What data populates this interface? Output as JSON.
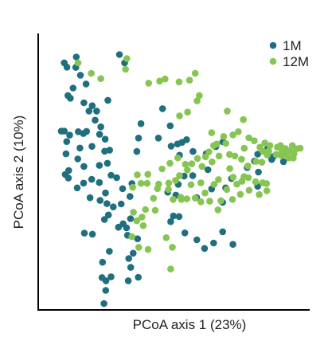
{
  "chart_data": {
    "type": "scatter",
    "xlabel": "PCoA axis 1 (23%)",
    "ylabel": "PCoA axis 2 (10%)",
    "xlim": [
      0,
      10
    ],
    "ylim": [
      0,
      10
    ],
    "grid": false,
    "legend_position": "top-right",
    "series": [
      {
        "name": "1M",
        "color": "#1f6f7f",
        "points": [
          [
            0.64,
            9.11
          ],
          [
            0.75,
            8.95
          ],
          [
            0.79,
            7.89
          ],
          [
            1.13,
            9.33
          ],
          [
            1.11,
            8.94
          ],
          [
            1.3,
            8.65
          ],
          [
            1.53,
            8.32
          ],
          [
            1.0,
            8.17
          ],
          [
            0.89,
            7.79
          ],
          [
            1.44,
            7.62
          ],
          [
            1.78,
            7.51
          ],
          [
            1.65,
            7.31
          ],
          [
            1.9,
            6.97
          ],
          [
            2.42,
            7.71
          ],
          [
            2.89,
            9.42
          ],
          [
            3.1,
            9.11
          ],
          [
            0.52,
            6.56
          ],
          [
            0.86,
            6.41
          ],
          [
            1.21,
            6.54
          ],
          [
            1.42,
            6.47
          ],
          [
            1.55,
            6.55
          ],
          [
            2.08,
            6.44
          ],
          [
            2.13,
            6.72
          ],
          [
            2.31,
            6.26
          ],
          [
            0.74,
            6.17
          ],
          [
            1.28,
            5.93
          ],
          [
            1.77,
            5.99
          ],
          [
            2.29,
            5.81
          ],
          [
            2.49,
            5.85
          ],
          [
            0.71,
            5.71
          ],
          [
            1.19,
            5.52
          ],
          [
            1.44,
            5.24
          ],
          [
            2.07,
            5.28
          ],
          [
            2.4,
            5.36
          ],
          [
            0.82,
            5.09
          ],
          [
            0.68,
            4.94
          ],
          [
            0.81,
            4.81
          ],
          [
            1.43,
            4.62
          ],
          [
            1.17,
            4.44
          ],
          [
            1.76,
            4.76
          ],
          [
            2.07,
            4.64
          ],
          [
            2.55,
            4.91
          ],
          [
            2.32,
            4.25
          ],
          [
            3.02,
            4.41
          ],
          [
            1.69,
            4.07
          ],
          [
            2.1,
            3.97
          ],
          [
            2.38,
            3.85
          ],
          [
            2.64,
            3.73
          ],
          [
            2.96,
            3.84
          ],
          [
            3.32,
            4.12
          ],
          [
            2.44,
            3.43
          ],
          [
            2.28,
            3.26
          ],
          [
            3.34,
            3.29
          ],
          [
            3.04,
            3.1
          ],
          [
            3.18,
            2.95
          ],
          [
            2.85,
            2.97
          ],
          [
            1.46,
            2.75
          ],
          [
            1.79,
            2.71
          ],
          [
            3.22,
            2.67
          ],
          [
            3.63,
            2.54
          ],
          [
            2.48,
            2.07
          ],
          [
            3.45,
            2.0
          ],
          [
            3.27,
            1.8
          ],
          [
            2.2,
            1.66
          ],
          [
            3.35,
            1.47
          ],
          [
            2.18,
            1.09
          ],
          [
            2.55,
            1.12
          ],
          [
            3.66,
            1.1
          ],
          [
            2.34,
            0.97
          ],
          [
            3.25,
            0.97
          ],
          [
            2.33,
            0.61
          ],
          [
            2.26,
            0.12
          ],
          [
            3.77,
            6.84
          ],
          [
            3.67,
            6.3
          ],
          [
            3.6,
            5.8
          ],
          [
            3.4,
            4.6
          ],
          [
            4.48,
            6.3
          ],
          [
            4.65,
            7.4
          ],
          [
            4.96,
            6.76
          ],
          [
            5.0,
            6.0
          ],
          [
            5.26,
            6.08
          ],
          [
            5.44,
            6.14
          ],
          [
            5.63,
            6.24
          ],
          [
            5.34,
            5.66
          ],
          [
            5.89,
            5.8
          ],
          [
            6.43,
            5.72
          ],
          [
            6.82,
            5.98
          ],
          [
            7.11,
            6.16
          ],
          [
            5.53,
            4.88
          ],
          [
            5.88,
            4.9
          ],
          [
            6.5,
            5.12
          ],
          [
            7.46,
            4.79
          ],
          [
            6.65,
            4.4
          ],
          [
            7.22,
            4.44
          ],
          [
            4.86,
            4.28
          ],
          [
            5.19,
            4.17
          ],
          [
            7.1,
            3.9
          ],
          [
            4.98,
            3.18
          ],
          [
            5.32,
            3.37
          ],
          [
            5.56,
            2.76
          ],
          [
            6.05,
            2.5
          ],
          [
            6.36,
            2.18
          ],
          [
            6.73,
            2.38
          ],
          [
            7.52,
            2.33
          ],
          [
            8.4,
            5.44
          ],
          [
            8.53,
            5.7
          ],
          [
            8.93,
            5.9
          ],
          [
            9.1,
            5.5
          ],
          [
            8.56,
            5.03
          ],
          [
            9.58,
            5.42
          ],
          [
            9.17,
            5.61
          ],
          [
            5.29,
            4.57
          ],
          [
            2.78,
            4.82
          ],
          [
            6.04,
            4.08
          ],
          [
            7.1,
            2.8
          ],
          [
            8.1,
            5.2
          ],
          [
            5.09,
            3.39
          ],
          [
            8.53,
            4.5
          ],
          [
            0.64,
            6.56
          ],
          [
            1.96,
            7.31
          ]
        ]
      },
      {
        "name": "12M",
        "color": "#86c552",
        "points": [
          [
            1.2,
            9.11
          ],
          [
            1.74,
            8.72
          ],
          [
            3.14,
            8.87
          ],
          [
            3.19,
            9.27
          ],
          [
            2.13,
            8.52
          ],
          [
            4.08,
            8.35
          ],
          [
            4.53,
            8.43
          ],
          [
            4.75,
            8.51
          ],
          [
            5.32,
            8.4
          ],
          [
            5.75,
            8.46
          ],
          [
            5.98,
            8.72
          ],
          [
            6.15,
            7.89
          ],
          [
            6.06,
            7.69
          ],
          [
            5.34,
            7.13
          ],
          [
            5.67,
            7.27
          ],
          [
            7.29,
            7.31
          ],
          [
            7.94,
            6.99
          ],
          [
            8.17,
            6.31
          ],
          [
            6.65,
            6.5
          ],
          [
            7.14,
            6.36
          ],
          [
            6.73,
            6.02
          ],
          [
            7.23,
            6.1
          ],
          [
            7.52,
            6.42
          ],
          [
            7.74,
            6.54
          ],
          [
            7.98,
            5.92
          ],
          [
            8.39,
            6.2
          ],
          [
            8.62,
            5.96
          ],
          [
            8.82,
            6.12
          ],
          [
            9.03,
            6.02
          ],
          [
            9.33,
            5.96
          ],
          [
            9.51,
            5.77
          ],
          [
            9.66,
            5.91
          ],
          [
            9.83,
            5.82
          ],
          [
            9.94,
            6.02
          ],
          [
            10.1,
            5.9
          ],
          [
            10.26,
            5.92
          ],
          [
            10.01,
            5.71
          ],
          [
            9.8,
            5.56
          ],
          [
            9.5,
            5.64
          ],
          [
            9.28,
            5.69
          ],
          [
            8.92,
            5.67
          ],
          [
            8.7,
            5.4
          ],
          [
            8.46,
            5.43
          ],
          [
            8.13,
            5.26
          ],
          [
            7.87,
            5.51
          ],
          [
            7.6,
            5.63
          ],
          [
            7.38,
            5.69
          ],
          [
            6.95,
            5.63
          ],
          [
            6.67,
            5.41
          ],
          [
            6.4,
            5.6
          ],
          [
            6.26,
            5.24
          ],
          [
            6.07,
            5.54
          ],
          [
            5.84,
            5.34
          ],
          [
            5.58,
            5.32
          ],
          [
            4.95,
            5.36
          ],
          [
            4.63,
            5.15
          ],
          [
            4.49,
            4.58
          ],
          [
            4.44,
            4.41
          ],
          [
            4.05,
            4.95
          ],
          [
            3.62,
            4.93
          ],
          [
            3.77,
            4.61
          ],
          [
            3.43,
            4.46
          ],
          [
            4.02,
            4.61
          ],
          [
            4.89,
            4.38
          ],
          [
            5.08,
            4.01
          ],
          [
            5.42,
            4.01
          ],
          [
            5.64,
            4.03
          ],
          [
            5.98,
            4.06
          ],
          [
            6.38,
            4.25
          ],
          [
            6.75,
            4.57
          ],
          [
            6.93,
            4.75
          ],
          [
            7.27,
            4.38
          ],
          [
            7.53,
            4.84
          ],
          [
            7.89,
            4.69
          ],
          [
            8.15,
            4.82
          ],
          [
            8.44,
            4.67
          ],
          [
            8.73,
            4.63
          ],
          [
            8.89,
            4.6
          ],
          [
            8.9,
            4.33
          ],
          [
            8.59,
            4.19
          ],
          [
            8.18,
            4.35
          ],
          [
            7.82,
            4.2
          ],
          [
            7.5,
            4.01
          ],
          [
            7.03,
            3.96
          ],
          [
            6.91,
            3.62
          ],
          [
            6.57,
            3.94
          ],
          [
            6.21,
            3.92
          ],
          [
            5.81,
            4.56
          ],
          [
            5.66,
            5.11
          ],
          [
            5.34,
            4.9
          ],
          [
            5.18,
            4.72
          ],
          [
            4.28,
            4.05
          ],
          [
            3.95,
            3.63
          ],
          [
            3.46,
            3.53
          ],
          [
            3.81,
            3.35
          ],
          [
            3.6,
            3.21
          ],
          [
            3.86,
            3.03
          ],
          [
            3.4,
            2.62
          ],
          [
            3.68,
            2.22
          ],
          [
            4.06,
            2.14
          ],
          [
            4.35,
            3.6
          ],
          [
            4.8,
            2.58
          ],
          [
            5.05,
            2.22
          ],
          [
            4.98,
            1.41
          ],
          [
            7.97,
            4.86
          ],
          [
            7.68,
            4.58
          ],
          [
            9.46,
            6.02
          ],
          [
            9.98,
            5.55
          ],
          [
            6.21,
            4.63
          ],
          [
            6.54,
            5.79
          ],
          [
            4.9,
            4.62
          ],
          [
            5.39,
            4.09
          ],
          [
            8.98,
            5.81
          ],
          [
            9.68,
            5.68
          ],
          [
            6.86,
            6.08
          ],
          [
            7.39,
            5.16
          ],
          [
            8.75,
            5.8
          ],
          [
            5.27,
            5.56
          ]
        ]
      }
    ]
  }
}
